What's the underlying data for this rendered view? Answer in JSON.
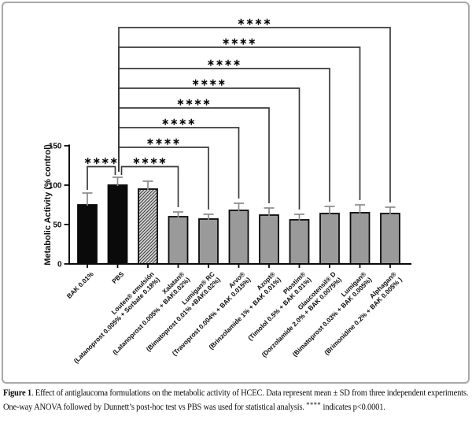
{
  "figure": {
    "caption": {
      "label": "Figure 1",
      "line1_rest": ". Effect of antiglaucoma formulations on the metabolic activity of HCEC. Data represent mean ± SD from three independent experiments.",
      "line2_pre": "One-way ANOVA followed by Dunnett’s post-hoc test vs PBS was used for statistical analysis. ",
      "stars": "****",
      "line2_post": " indicates p<0.0001."
    }
  },
  "chart_data": {
    "type": "bar",
    "title": "",
    "xlabel": "",
    "ylabel": "Metabolic Activity (% control)",
    "ylim": [
      0,
      150
    ],
    "yticks": [
      0,
      50,
      100,
      150
    ],
    "grid": false,
    "legend": "none",
    "bars": [
      {
        "label_lines": [
          "BAK 0.01%"
        ],
        "value": 75,
        "sd": 15,
        "fill": "black"
      },
      {
        "label_lines": [
          "PBS"
        ],
        "value": 100,
        "sd": 10,
        "fill": "black"
      },
      {
        "label_lines": [
          "Louten® emulsión",
          "(Latanoprost 0.005% + Sorbate 0.18%)"
        ],
        "value": 95,
        "sd": 10,
        "fill": "hatch"
      },
      {
        "label_lines": [
          "Xalatan®",
          "(Latanoprost 0.005% + BAK0.02%)"
        ],
        "value": 60,
        "sd": 6,
        "fill": "gray"
      },
      {
        "label_lines": [
          "Lumigan® RC",
          "(Bimatoprost 0.01% +BAK0.02%)"
        ],
        "value": 57,
        "sd": 6,
        "fill": "gray"
      },
      {
        "label_lines": [
          "Arvo®",
          "(Travoprost 0.004% + BAK 0.015%)"
        ],
        "value": 68,
        "sd": 9,
        "fill": "gray"
      },
      {
        "label_lines": [
          "Azopt®",
          "(Brinzolamide 1% + BAK 0.01%)"
        ],
        "value": 62,
        "sd": 9,
        "fill": "gray"
      },
      {
        "label_lines": [
          "Plostim®",
          "(Timolol 0.5% + BAK 0.01%)"
        ],
        "value": 56,
        "sd": 7,
        "fill": "gray"
      },
      {
        "label_lines": [
          "Glaucotensil® D",
          "(Dorzolamide 2.0% + BAK 0.0075%)"
        ],
        "value": 64,
        "sd": 9,
        "fill": "gray"
      },
      {
        "label_lines": [
          "Lumigan®",
          "(Bimatoprost 0.03% + BAK 0.005%)"
        ],
        "value": 65,
        "sd": 10,
        "fill": "gray"
      },
      {
        "label_lines": [
          "Alphagan®",
          "(Brimonidine 0.2% + BAK 0.005% )"
        ],
        "value": 64,
        "sd": 8,
        "fill": "gray"
      }
    ],
    "significance": [
      {
        "from": 0,
        "to": 1,
        "label": "****"
      },
      {
        "from": 1,
        "to": 3,
        "label": "****"
      },
      {
        "from": 1,
        "to": 4,
        "label": "****"
      },
      {
        "from": 1,
        "to": 5,
        "label": "****"
      },
      {
        "from": 1,
        "to": 6,
        "label": "****"
      },
      {
        "from": 1,
        "to": 7,
        "label": "****"
      },
      {
        "from": 1,
        "to": 8,
        "label": "****"
      },
      {
        "from": 1,
        "to": 9,
        "label": "****"
      },
      {
        "from": 1,
        "to": 10,
        "label": "****"
      }
    ],
    "colors": {
      "bar_black": "#0a0a0a",
      "bar_gray": "#9a9a9a",
      "bar_stroke": "#0a0a0a",
      "hatch_bg": "#dadada",
      "hatch_line": "#3c3c3c",
      "error_bar": "#8a8a8a",
      "bracket": "#3a3a3a",
      "axis": "#0a0a0a",
      "frame_border": "#a8a8a8"
    }
  }
}
